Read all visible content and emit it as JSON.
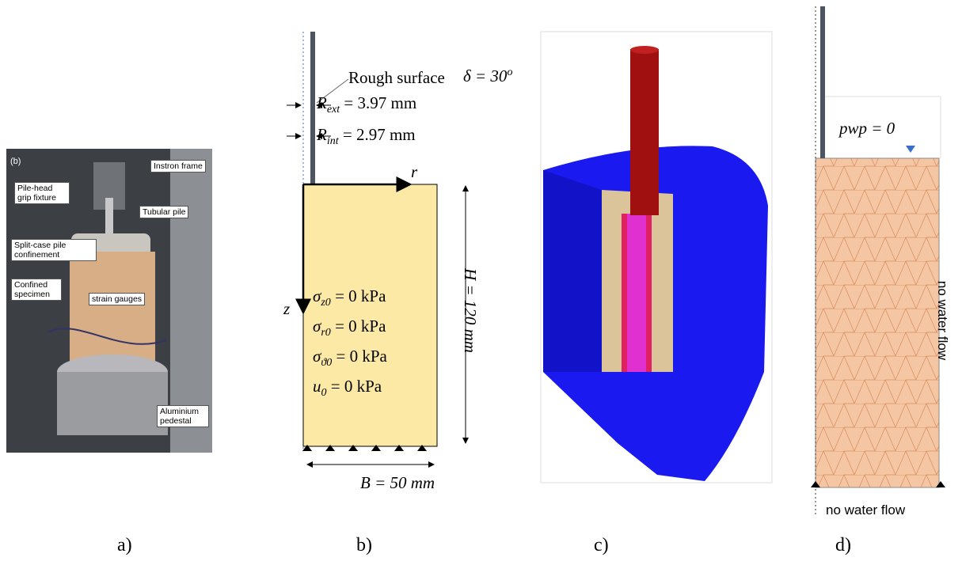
{
  "panel_a": {
    "tag": "(b)",
    "labels": [
      "Instron frame",
      "Pile-head grip fixture",
      "Tubular pile",
      "Split-case pile confinement",
      "Confined specimen",
      "strain gauges",
      "Aluminium pedestal"
    ]
  },
  "panel_b": {
    "rough": "Rough surface",
    "delta": {
      "lhs": "δ = 30",
      "sup": "o"
    },
    "r_ext": {
      "lhs": "R",
      "sub": "ext",
      "rhs": "= 3.97 mm"
    },
    "r_int": {
      "lhs": "R",
      "sub": "int",
      "rhs": "= 2.97 mm"
    },
    "r_axis": "r",
    "z_axis": "z",
    "height": "H = 120 mm",
    "width": "B = 50 mm",
    "initial": [
      {
        "lhs": "σ",
        "sub": "z0",
        "rhs": "= 0 kPa"
      },
      {
        "lhs": "σ",
        "sub": "r0",
        "rhs": "= 0 kPa"
      },
      {
        "lhs": "σ",
        "sub": "ϑ0",
        "rhs": "= 0 kPa"
      },
      {
        "lhs": "u",
        "sub": "0",
        "rhs": "= 0 kPa"
      }
    ]
  },
  "panel_d": {
    "pwp": "pwp = 0",
    "right_boundary": "no water flow",
    "bottom_boundary": "no water flow"
  },
  "captions": [
    "a)",
    "b)",
    "c)",
    "d)"
  ]
}
